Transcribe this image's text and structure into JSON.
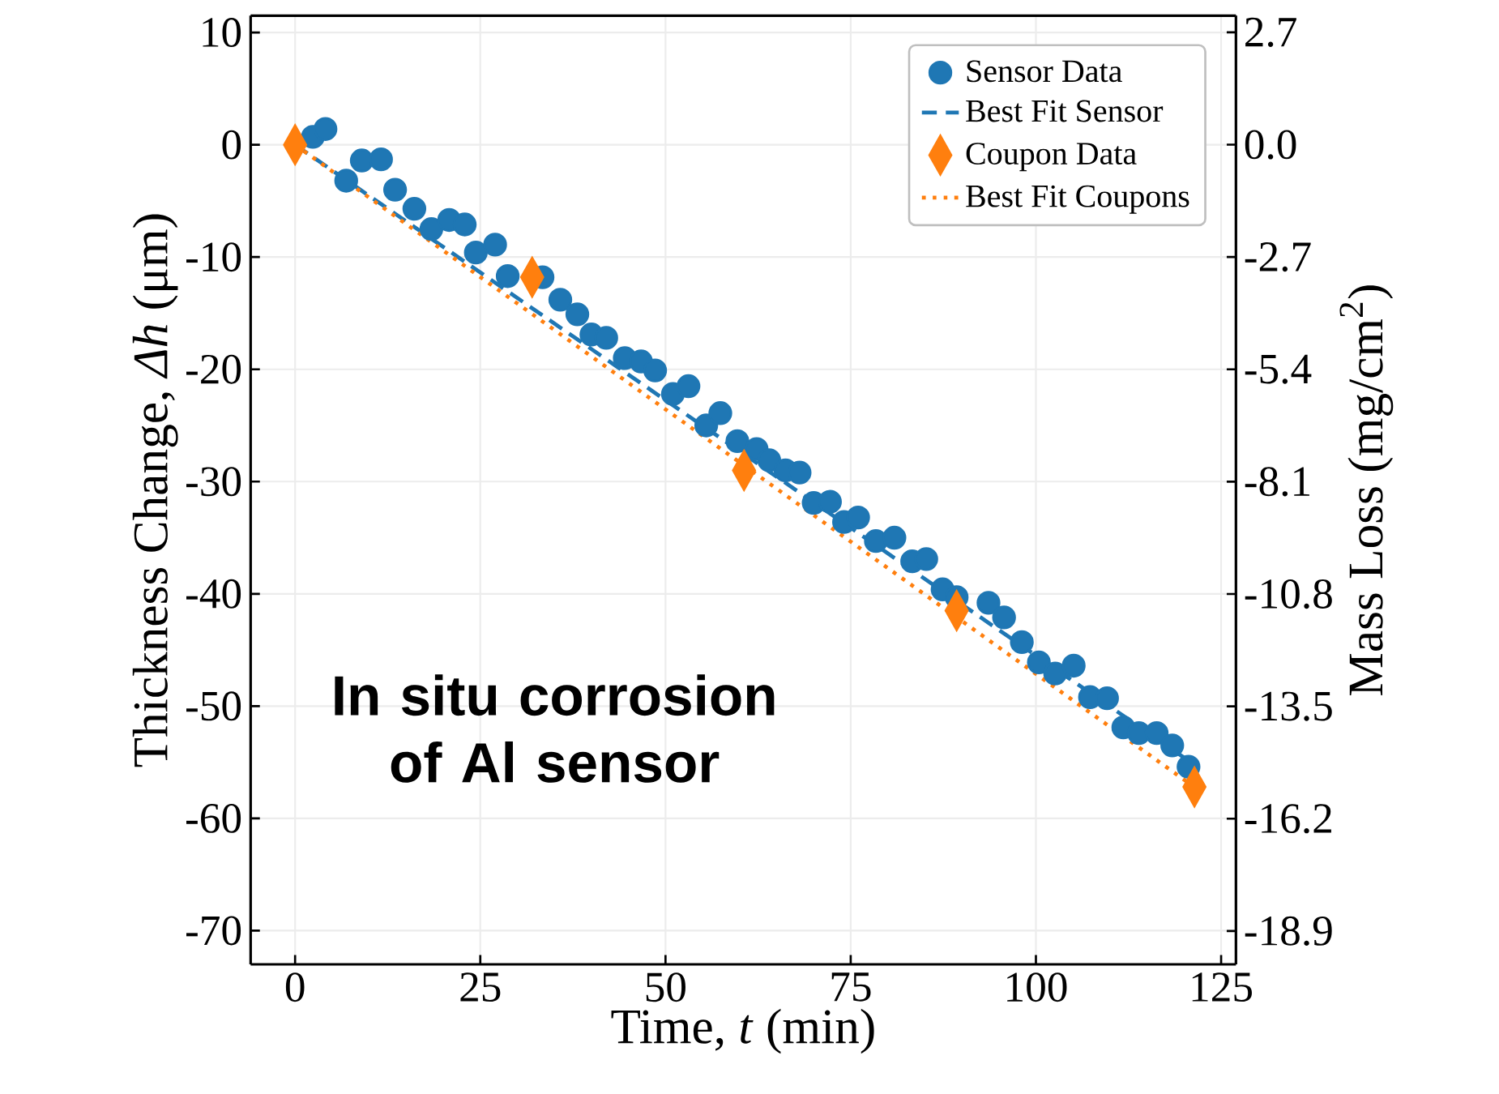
{
  "chart_data": {
    "type": "scatter",
    "xlabel": "Time, *t* (min)",
    "ylabel": "Thickness Change, *Δh* (μm)",
    "y2label": "Mass Loss (mg/cm$^{2}$)",
    "xlim": [
      -6,
      127
    ],
    "xticks": [
      0,
      25,
      50,
      75,
      100,
      125
    ],
    "ylim": [
      -73,
      11.5
    ],
    "yticks": [
      -70,
      -60,
      -50,
      -40,
      -30,
      -20,
      -10,
      0,
      10
    ],
    "y2lim": [
      -19.7,
      3.1
    ],
    "y2ticks": [
      -18.9,
      -16.2,
      -13.5,
      -10.8,
      -8.1,
      -5.4,
      -2.7,
      {
        "value": 0,
        "label": "0.0"
      },
      2.7
    ],
    "grid": true,
    "legend": "top right",
    "annotations": [
      "In situ corrosion of Al sensor"
    ],
    "series": [
      {
        "name": "Sensor Data",
        "marker": "circle",
        "color": "#1f77b4",
        "x": [
          2.4,
          4.1,
          6.9,
          9.0,
          11.6,
          13.5,
          16.1,
          18.4,
          20.8,
          22.9,
          24.4,
          27.0,
          28.7,
          33.4,
          35.8,
          38.1,
          40.0,
          42.0,
          44.5,
          46.7,
          48.6,
          51.0,
          53.1,
          55.5,
          57.4,
          59.7,
          62.3,
          64.0,
          66.2,
          68.1,
          70.0,
          72.2,
          74.1,
          76.0,
          78.4,
          80.9,
          83.3,
          85.2,
          87.4,
          89.3,
          93.6,
          95.7,
          98.1,
          100.4,
          102.6,
          105.1,
          107.3,
          109.6,
          111.8,
          113.9,
          116.3,
          118.4,
          120.6
        ],
        "values": [
          0.7,
          1.4,
          -3.2,
          -1.4,
          -1.3,
          -4.0,
          -5.7,
          -7.5,
          -6.7,
          -7.1,
          -9.6,
          -8.9,
          -11.7,
          -11.8,
          -13.8,
          -15.1,
          -16.9,
          -17.2,
          -19.0,
          -19.3,
          -20.1,
          -22.2,
          -21.5,
          -25.0,
          -23.9,
          -26.4,
          -27.1,
          -28.1,
          -29.0,
          -29.2,
          -31.9,
          -31.8,
          -33.6,
          -33.2,
          -35.3,
          -35.0,
          -37.1,
          -36.9,
          -39.6,
          -40.3,
          -40.8,
          -42.1,
          -44.3,
          -46.1,
          -47.1,
          -46.4,
          -49.2,
          -49.3,
          -51.9,
          -52.4,
          -52.4,
          -53.5,
          -55.4
        ]
      },
      {
        "name": "Best Fit Sensor",
        "type": "line",
        "line_style": "dashed",
        "color": "#1f77b4",
        "x": [
          0,
          122
        ],
        "values": [
          0,
          -55.5
        ]
      },
      {
        "name": "Coupon Data",
        "marker": "diamond",
        "color": "#ff7f0e",
        "x": [
          0,
          32,
          60.6,
          89.3,
          121.4
        ],
        "values": [
          0,
          -11.8,
          -29.0,
          -41.5,
          -57.2
        ]
      },
      {
        "name": "Best Fit Coupons",
        "type": "line",
        "line_style": "dotted",
        "color": "#ff7f0e",
        "x": [
          0,
          122
        ],
        "values": [
          0,
          -57.5
        ]
      }
    ]
  }
}
